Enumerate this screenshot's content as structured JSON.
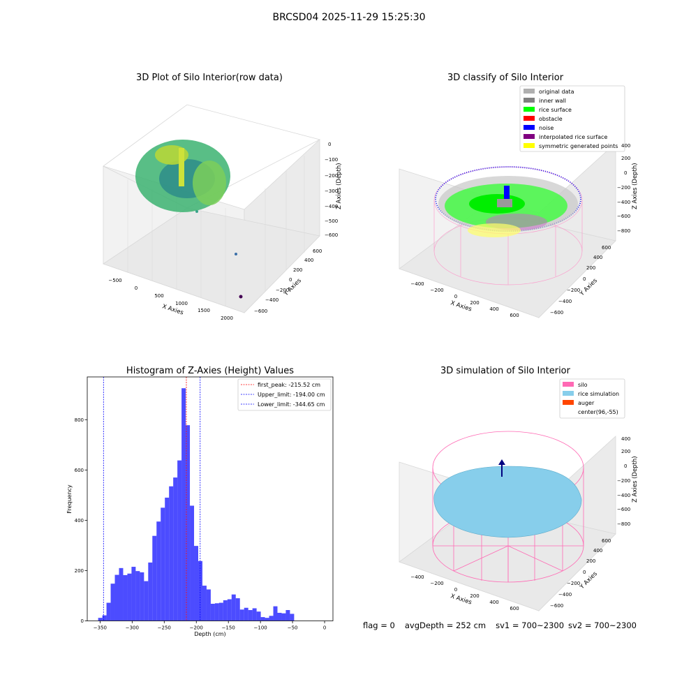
{
  "suptitle": "BRCSD04 2025-11-29 15:25:30",
  "panel1": {
    "title": "3D Plot of Silo Interior(row data)",
    "xlabel": "X Axies",
    "ylabel": "Y Axies",
    "zlabel": "Z Axies (Depth)",
    "xticks": [
      "−500",
      "0",
      "500",
      "1000",
      "1500",
      "2000"
    ],
    "yticks": [
      "−600",
      "−400",
      "−200",
      "0",
      "200",
      "400",
      "600"
    ],
    "zticks": [
      "0",
      "−100",
      "−200",
      "−300",
      "−400",
      "−500",
      "−600"
    ]
  },
  "panel2": {
    "title": "3D classify of Silo Interior",
    "xlabel": "X Axies",
    "ylabel": "Y Axies",
    "zlabel": "Z Axies (Depth)",
    "xticks": [
      "−400",
      "−200",
      "0",
      "200",
      "400",
      "600"
    ],
    "yticks": [
      "−600",
      "−400",
      "−200",
      "0",
      "200",
      "400",
      "600"
    ],
    "zticks": [
      "400",
      "200",
      "0",
      "−200",
      "−400",
      "−600",
      "−800"
    ],
    "legend": [
      {
        "label": "original data",
        "color": "#b0b0b0"
      },
      {
        "label": "inner wall",
        "color": "#808080"
      },
      {
        "label": "rice surface",
        "color": "#00ff00"
      },
      {
        "label": "obstacle",
        "color": "#ff0000"
      },
      {
        "label": "noise",
        "color": "#0000ff"
      },
      {
        "label": "interpolated rice surface",
        "color": "#800080"
      },
      {
        "label": "symmetric generated points",
        "color": "#ffff00"
      }
    ]
  },
  "panel4": {
    "title": "3D simulation of Silo Interior",
    "xlabel": "X Axies",
    "ylabel": "Y Axies",
    "zlabel": "Z Axies (Depth)",
    "xticks": [
      "−400",
      "−200",
      "0",
      "200",
      "400",
      "600"
    ],
    "yticks": [
      "−600",
      "−400",
      "−200",
      "0",
      "200",
      "400",
      "600"
    ],
    "zticks": [
      "400",
      "200",
      "0",
      "−200",
      "−400",
      "−600",
      "−800"
    ],
    "legend": [
      {
        "label": "silo",
        "color": "#ff69b4"
      },
      {
        "label": "rice simulation",
        "color": "#87ceeb"
      },
      {
        "label": "auger",
        "color": "#ff4500"
      },
      {
        "label": "center(96,-55)",
        "color": ""
      }
    ]
  },
  "footer": {
    "flag": "flag = 0",
    "avg": "avgDepth = 252 cm",
    "sv1": "sv1 = 700~2300",
    "sv2": "sv2 = 700~2300"
  },
  "chart_data": {
    "type": "bar",
    "title": "Histogram of Z-Axies (Height) Values",
    "xlabel": "Depth (cm)",
    "ylabel": "Frequency",
    "xlim": [
      -370,
      13
    ],
    "ylim": [
      0,
      970
    ],
    "xticks": [
      -350,
      -300,
      -250,
      -200,
      -150,
      -100,
      -50,
      0
    ],
    "xtick_labels": [
      "−350",
      "−300",
      "−250",
      "−200",
      "−150",
      "−100",
      "−50",
      "0"
    ],
    "yticks": [
      0,
      200,
      400,
      600,
      800
    ],
    "bar_color": "#0000ff",
    "bin_start": -353,
    "bin_width": 6.5,
    "values": [
      12,
      22,
      72,
      148,
      183,
      210,
      182,
      188,
      215,
      198,
      193,
      158,
      232,
      338,
      395,
      450,
      490,
      535,
      570,
      638,
      925,
      778,
      458,
      298,
      238,
      140,
      125,
      68,
      70,
      72,
      82,
      86,
      105,
      90,
      45,
      52,
      43,
      50,
      37,
      15,
      12,
      20,
      58,
      32,
      30,
      43,
      28
    ],
    "lines": [
      {
        "label": "first_peak: -215.52 cm",
        "x": -215.52,
        "color": "#ff0000"
      },
      {
        "label": "Upper_limit: -194.00 cm",
        "x": -194.0,
        "color": "#0000ff"
      },
      {
        "label": "Lower_limit: -344.65 cm",
        "x": -344.65,
        "color": "#0000ff"
      }
    ]
  }
}
